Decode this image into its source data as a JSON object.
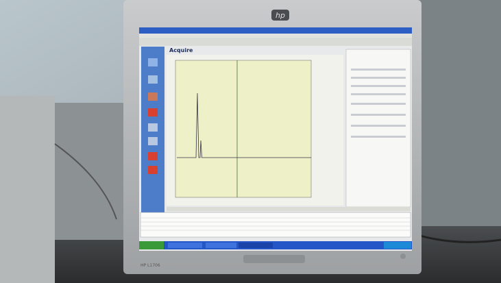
{
  "monitor": {
    "logo": "hp",
    "model": "HP L1706"
  },
  "window": {
    "panel_title": "Acquire"
  }
}
